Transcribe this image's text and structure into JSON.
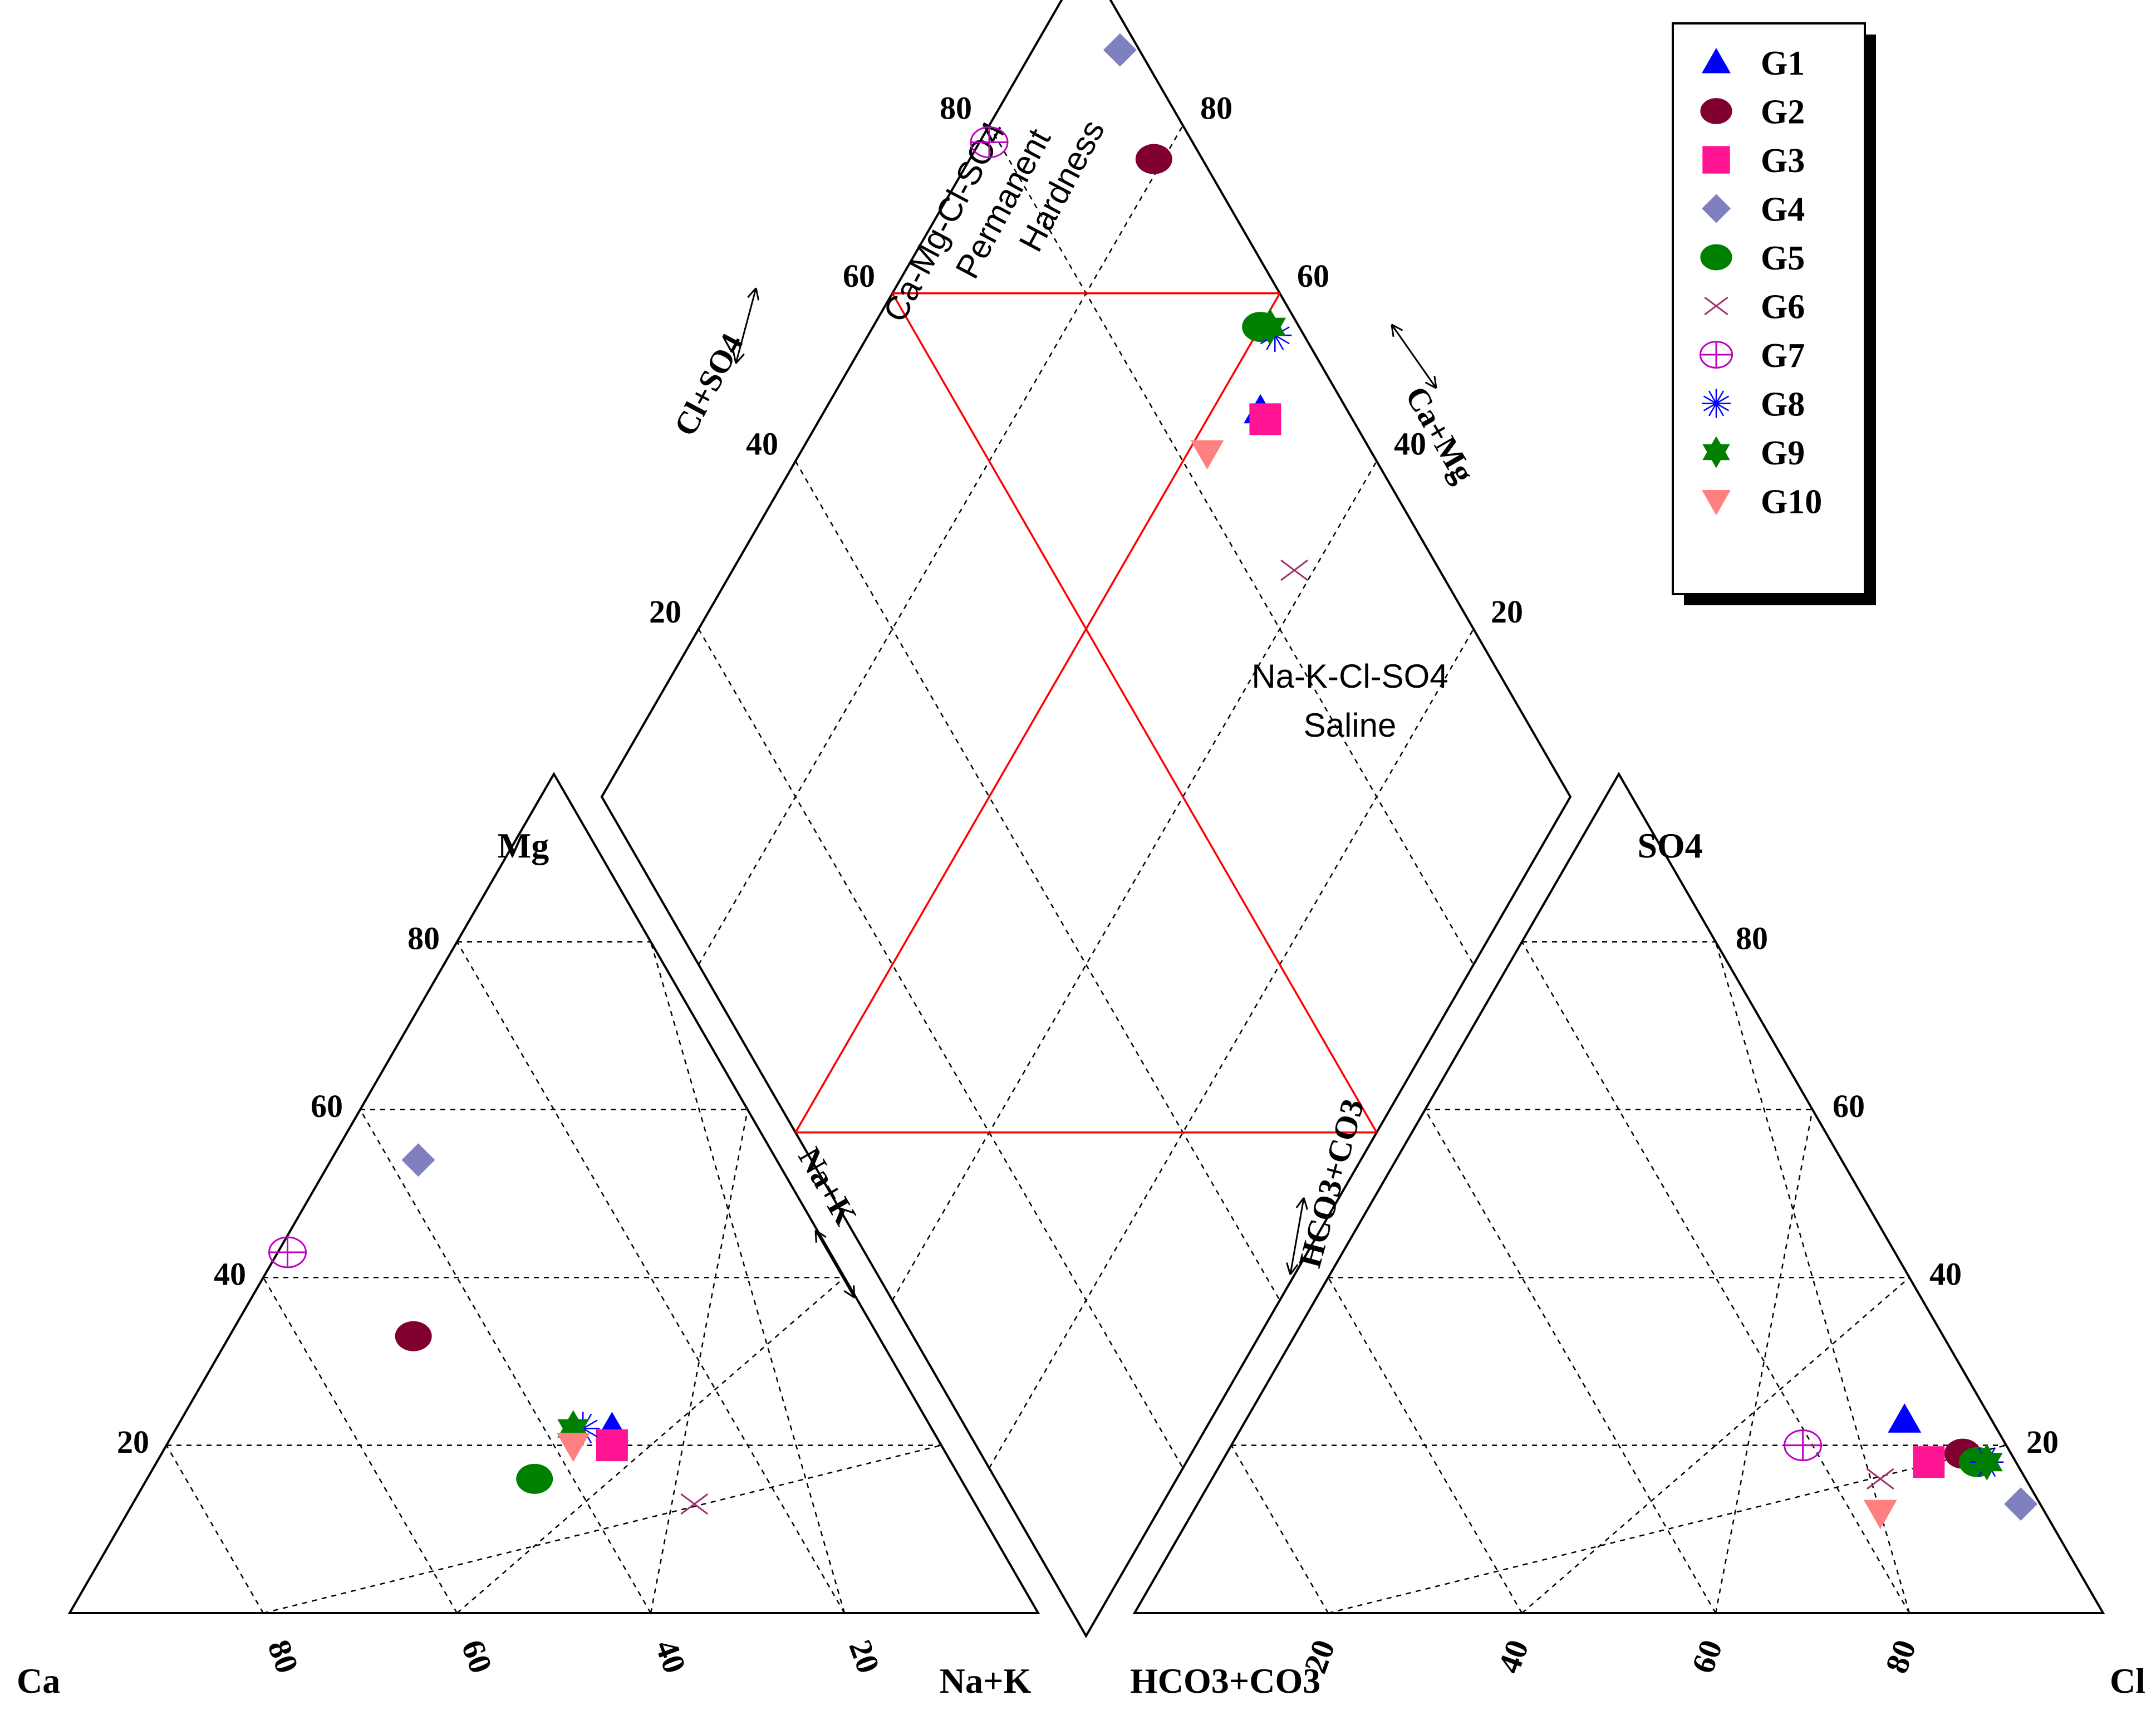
{
  "chart_data": {
    "type": "scatter",
    "subtype": "piper-trilinear",
    "cation_triangle": {
      "corners": {
        "left": "Ca",
        "top": "Mg",
        "right": "Na+K"
      },
      "left_ticks": [
        "80",
        "60",
        "40",
        "20"
      ],
      "bottom_ticks": [
        "80",
        "60",
        "40",
        "20"
      ],
      "side_label": "Na+K"
    },
    "anion_triangle": {
      "corners": {
        "left": "HCO3+CO3",
        "top": "SO4",
        "right": "Cl"
      },
      "right_ticks": [
        "80",
        "60",
        "40",
        "20"
      ],
      "bottom_ticks": [
        "20",
        "40",
        "60",
        "80"
      ],
      "side_label": "HCO3+CO3"
    },
    "diamond": {
      "left_axis_label": "Cl+SO4",
      "right_axis_label": "Ca+Mg",
      "left_ticks": [
        "80",
        "60",
        "40",
        "20"
      ],
      "right_ticks": [
        "80",
        "60",
        "40",
        "20"
      ],
      "annotations": [
        {
          "id": "perm",
          "lines": [
            "Ca-Mg-Cl-SO4",
            "Permanent",
            "Hardness"
          ]
        },
        {
          "id": "saline",
          "lines": [
            "Na-K-Cl-SO4",
            "Saline"
          ]
        }
      ]
    },
    "series": [
      {
        "name": "G1",
        "marker": "triangle-up",
        "color": "#0000ff",
        "cation": {
          "Ca": 33,
          "Mg": 22,
          "NaK": 45
        },
        "anion": {
          "HCO3": 9,
          "SO4": 23,
          "Cl": 68
        }
      },
      {
        "name": "G2",
        "marker": "circle",
        "color": "#800030",
        "cation": {
          "Ca": 48,
          "Mg": 33,
          "NaK": 19
        },
        "anion": {
          "HCO3": 5,
          "SO4": 19,
          "Cl": 76
        }
      },
      {
        "name": "G3",
        "marker": "square",
        "color": "#ff1493",
        "cation": {
          "Ca": 34,
          "Mg": 20,
          "NaK": 46
        },
        "anion": {
          "HCO3": 9,
          "SO4": 18,
          "Cl": 73
        }
      },
      {
        "name": "G4",
        "marker": "diamond",
        "color": "#8080c0",
        "cation": {
          "Ca": 37,
          "Mg": 54,
          "NaK": 9
        },
        "anion": {
          "HCO3": 2,
          "SO4": 13,
          "Cl": 85
        }
      },
      {
        "name": "G5",
        "marker": "circle",
        "color": "#008000",
        "cation": {
          "Ca": 44,
          "Mg": 16,
          "NaK": 40
        },
        "anion": {
          "HCO3": 4,
          "SO4": 18,
          "Cl": 78
        }
      },
      {
        "name": "G6",
        "marker": "x",
        "color": "#a0306a",
        "cation": {
          "Ca": 29,
          "Mg": 13,
          "NaK": 58
        },
        "anion": {
          "HCO3": 15,
          "SO4": 16,
          "Cl": 69
        }
      },
      {
        "name": "G7",
        "marker": "circle-cross",
        "color": "#c000c0",
        "cation": {
          "Ca": 56,
          "Mg": 43,
          "NaK": 1
        },
        "anion": {
          "HCO3": 21,
          "SO4": 20,
          "Cl": 59
        }
      },
      {
        "name": "G8",
        "marker": "asterisk",
        "color": "#0000ff",
        "cation": {
          "Ca": 36,
          "Mg": 22,
          "NaK": 42
        },
        "anion": {
          "HCO3": 3,
          "SO4": 18,
          "Cl": 79
        }
      },
      {
        "name": "G9",
        "marker": "star6",
        "color": "#008000",
        "cation": {
          "Ca": 37,
          "Mg": 22,
          "NaK": 41
        },
        "anion": {
          "HCO3": 3,
          "SO4": 18,
          "Cl": 79
        }
      },
      {
        "name": "G10",
        "marker": "triangle-down",
        "color": "#ff8080",
        "cation": {
          "Ca": 38,
          "Mg": 20,
          "NaK": 42
        },
        "anion": {
          "HCO3": 17,
          "SO4": 12,
          "Cl": 71
        }
      }
    ]
  }
}
